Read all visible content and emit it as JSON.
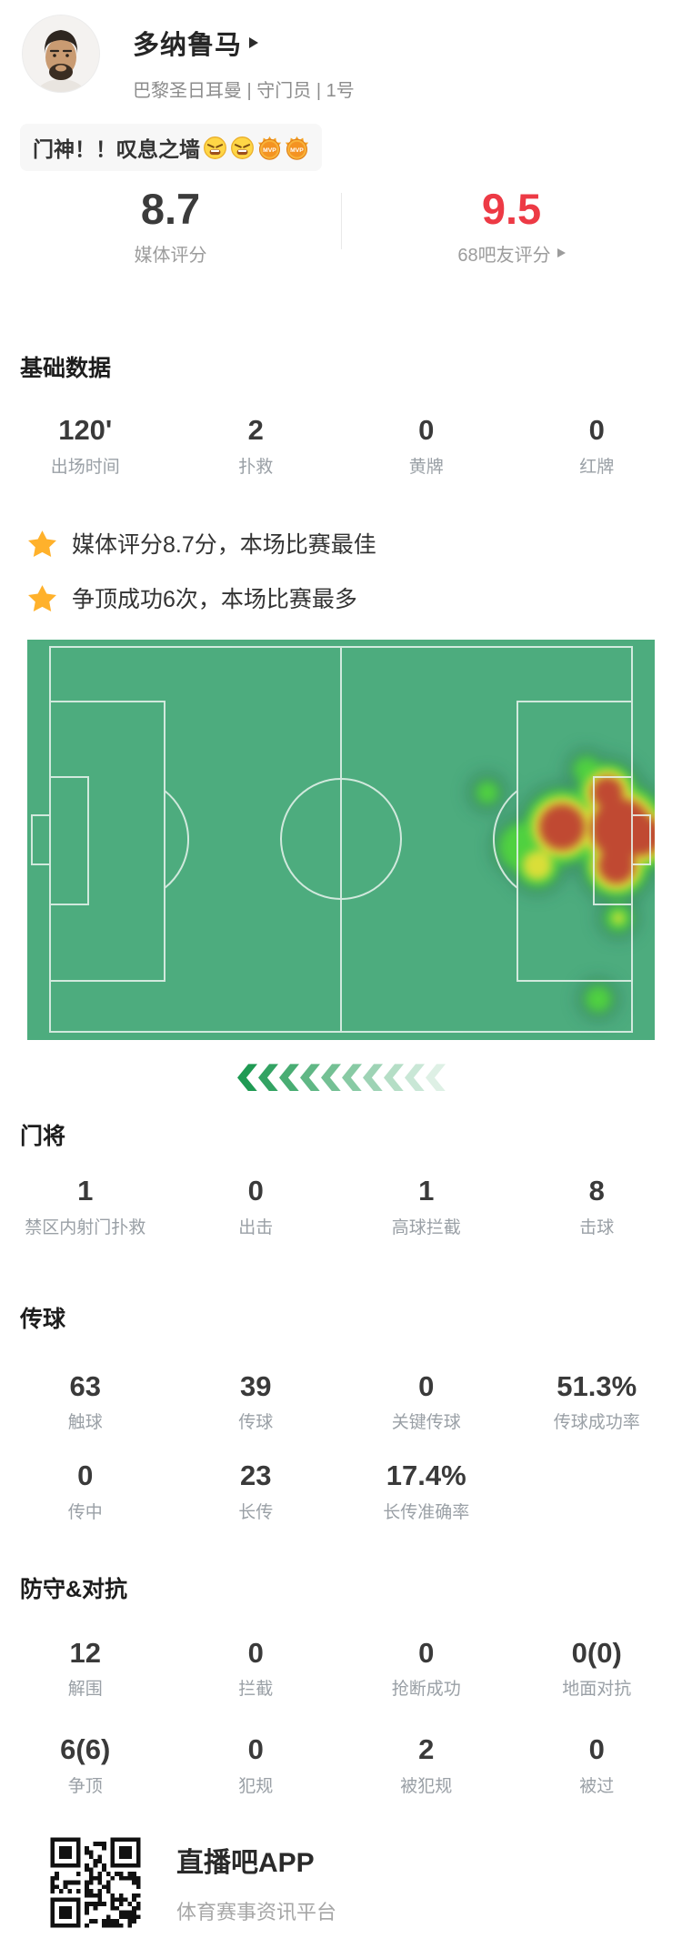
{
  "colors": {
    "accent_red": "#ed3a45",
    "field_green": "#4dac7e",
    "pitch_line": "#e9f4ee",
    "star_gold": "#ffb12b",
    "chevron_green_rgb": "31,154,83"
  },
  "header": {
    "name": "多纳鲁马",
    "meta": "巴黎圣日耳曼 | 守门员 | 1号"
  },
  "comment": {
    "text": "门神！！叹息之墙",
    "mvp_label": "MVP"
  },
  "ratings": {
    "media": {
      "value": "8.7",
      "label": "媒体评分"
    },
    "fans": {
      "value": "9.5",
      "label": "68吧友评分"
    }
  },
  "basic": {
    "title": "基础数据",
    "stats": [
      {
        "value": "120'",
        "label": "出场时间"
      },
      {
        "value": "2",
        "label": "扑救"
      },
      {
        "value": "0",
        "label": "黄牌"
      },
      {
        "value": "0",
        "label": "红牌"
      }
    ]
  },
  "highlights": [
    {
      "text": "媒体评分8.7分，本场比赛最佳"
    },
    {
      "text": "争顶成功6次，本场比赛最多"
    }
  ],
  "goalkeeper": {
    "title": "门将",
    "stats": [
      {
        "value": "1",
        "label": "禁区内射门扑救"
      },
      {
        "value": "0",
        "label": "出击"
      },
      {
        "value": "1",
        "label": "高球拦截"
      },
      {
        "value": "8",
        "label": "击球"
      }
    ]
  },
  "passing": {
    "title": "传球",
    "rows": [
      [
        {
          "value": "63",
          "label": "触球"
        },
        {
          "value": "39",
          "label": "传球"
        },
        {
          "value": "0",
          "label": "关键传球"
        },
        {
          "value": "51.3%",
          "label": "传球成功率"
        }
      ],
      [
        {
          "value": "0",
          "label": "传中"
        },
        {
          "value": "23",
          "label": "长传"
        },
        {
          "value": "17.4%",
          "label": "长传准确率"
        },
        {
          "value": "",
          "label": ""
        }
      ]
    ]
  },
  "defense": {
    "title": "防守&对抗",
    "rows": [
      [
        {
          "value": "12",
          "label": "解围"
        },
        {
          "value": "0",
          "label": "拦截"
        },
        {
          "value": "0",
          "label": "抢断成功"
        },
        {
          "value": "0(0)",
          "label": "地面对抗"
        }
      ],
      [
        {
          "value": "6(6)",
          "label": "争顶"
        },
        {
          "value": "0",
          "label": "犯规"
        },
        {
          "value": "2",
          "label": "被犯规"
        },
        {
          "value": "0",
          "label": "被过"
        }
      ]
    ]
  },
  "footer": {
    "app_name": "直播吧APP",
    "tagline": "体育赛事资讯平台"
  },
  "direction": {
    "count": 10
  },
  "heatmap": {
    "bands": [
      {
        "id": "halo",
        "color": "#2c7052",
        "opacity": 0.5,
        "circles": [
          [
            506,
            168,
            22
          ],
          [
            545,
            228,
            35
          ],
          [
            561,
            248,
            32
          ],
          [
            588,
            206,
            49
          ],
          [
            615,
            143,
            23
          ],
          [
            638,
            168,
            40
          ],
          [
            653,
            208,
            57
          ],
          [
            648,
            248,
            43
          ],
          [
            675,
            215,
            46
          ],
          [
            650,
            306,
            23
          ],
          [
            628,
            395,
            23
          ]
        ]
      },
      {
        "id": "green",
        "color": "#4fd13f",
        "opacity": 1,
        "circles": [
          [
            506,
            168,
            13
          ],
          [
            545,
            228,
            27
          ],
          [
            561,
            248,
            24
          ],
          [
            588,
            206,
            41
          ],
          [
            615,
            143,
            15
          ],
          [
            638,
            168,
            32
          ],
          [
            653,
            208,
            49
          ],
          [
            648,
            248,
            35
          ],
          [
            675,
            215,
            38
          ],
          [
            650,
            306,
            15
          ],
          [
            628,
            395,
            15
          ]
        ]
      },
      {
        "id": "yellow",
        "color": "#dade38",
        "opacity": 1,
        "circles": [
          [
            561,
            248,
            16
          ],
          [
            588,
            206,
            33
          ],
          [
            638,
            168,
            25
          ],
          [
            653,
            208,
            41
          ],
          [
            648,
            248,
            28
          ],
          [
            675,
            215,
            30
          ],
          [
            650,
            306,
            6
          ]
        ]
      },
      {
        "id": "red",
        "color": "#c04a31",
        "opacity": 1,
        "circles": [
          [
            588,
            206,
            25
          ],
          [
            638,
            168,
            17
          ],
          [
            653,
            208,
            33
          ],
          [
            648,
            248,
            20
          ],
          [
            675,
            215,
            22
          ]
        ]
      }
    ]
  }
}
